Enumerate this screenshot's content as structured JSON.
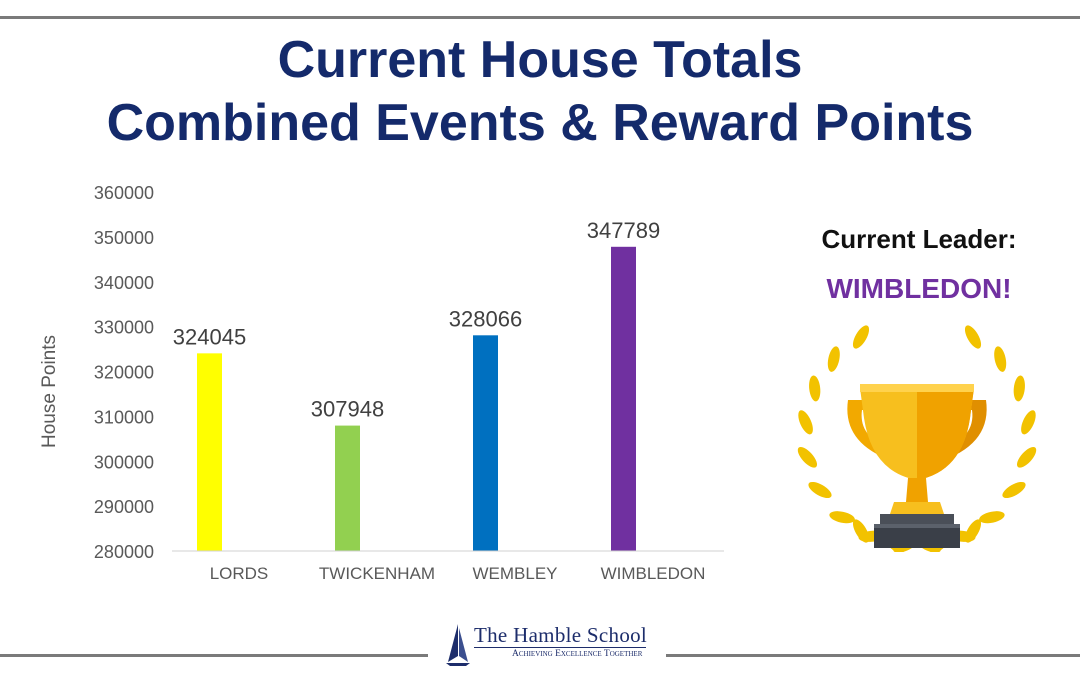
{
  "header": {
    "title_line_1": "Current House Totals",
    "title_line_2": "Combined Events & Reward Points"
  },
  "chart_data": {
    "type": "bar",
    "categories": [
      "LORDS",
      "TWICKENHAM",
      "WEMBLEY",
      "WIMBLEDON"
    ],
    "values": [
      324045,
      307948,
      328066,
      347789
    ],
    "data_labels": [
      "324045",
      "307948",
      "328066",
      "347789"
    ],
    "colors": [
      "#ffff00",
      "#92d050",
      "#0070c0",
      "#7030a0"
    ],
    "xlabel": "",
    "ylabel": "House Points",
    "ylim": [
      280000,
      360000
    ],
    "yticks": [
      280000,
      290000,
      300000,
      310000,
      320000,
      330000,
      340000,
      350000,
      360000
    ],
    "ytick_labels": [
      "280000",
      "290000",
      "300000",
      "310000",
      "320000",
      "330000",
      "340000",
      "350000",
      "360000"
    ],
    "grid": false,
    "legend": "none"
  },
  "leader": {
    "label": "Current Leader:",
    "value": "WIMBLEDON!",
    "color": "#7030a0",
    "icon": "trophy-with-laurel-wreath-icon"
  },
  "footer": {
    "school_name": "The Hamble School",
    "motto": "Achieving Excellence Together",
    "logo_icon": "sailboat-icon"
  },
  "colors": {
    "title": "#142a6b",
    "rule": "#7a7a7a",
    "gold": "#f5b400"
  }
}
